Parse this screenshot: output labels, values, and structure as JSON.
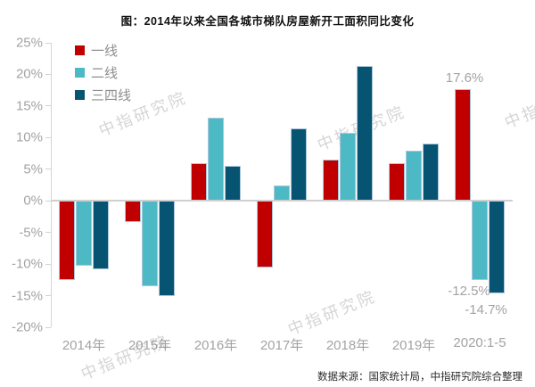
{
  "title": "图：2014年以来全国各城市梯队房屋新开工面积同比变化",
  "source": "数据来源：国家统计局，中指研究院综合整理",
  "watermark_text": "中指研究院",
  "chart_data": {
    "type": "bar",
    "title": "图：2014年以来全国各城市梯队房屋新开工面积同比变化",
    "categories": [
      "2014年",
      "2015年",
      "2016年",
      "2017年",
      "2018年",
      "2019年",
      "2020:1-5"
    ],
    "series": [
      {
        "name": "一线",
        "color": "#c00000",
        "values": [
          -12.5,
          -3.4,
          5.9,
          -10.6,
          6.5,
          5.9,
          17.6
        ],
        "labels": [
          null,
          null,
          null,
          null,
          null,
          null,
          "17.6%"
        ]
      },
      {
        "name": "二线",
        "color": "#4db9c5",
        "values": [
          -10.2,
          -13.5,
          13.2,
          2.4,
          10.8,
          8.0,
          -12.5
        ],
        "labels": [
          null,
          null,
          null,
          null,
          null,
          null,
          "-12.5%"
        ]
      },
      {
        "name": "三四线",
        "color": "#075472",
        "values": [
          -10.9,
          -15.1,
          5.5,
          11.5,
          21.4,
          9.0,
          -14.7
        ],
        "labels": [
          null,
          null,
          null,
          null,
          null,
          null,
          "-14.7%"
        ]
      }
    ],
    "ylim": [
      -20,
      25
    ],
    "ytick_step": 5,
    "ytick_labels": [
      "25%",
      "20%",
      "15%",
      "10%",
      "5%",
      "0%",
      "-5%",
      "-10%",
      "-15%",
      "-20%"
    ],
    "grid": false,
    "legend_position": "top-left-inside",
    "xlabel": "",
    "ylabel": ""
  }
}
